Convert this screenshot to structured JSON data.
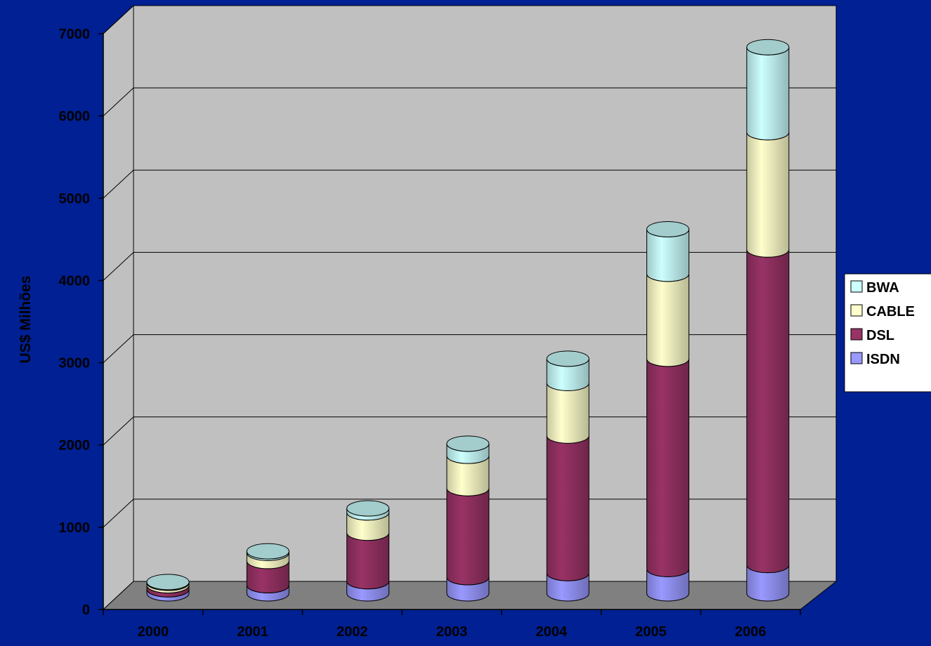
{
  "chart_data": {
    "type": "bar",
    "stacked": true,
    "shape": "cylinder-3d",
    "categories": [
      "2000",
      "2001",
      "2002",
      "2003",
      "2004",
      "2005",
      "2006"
    ],
    "series": [
      {
        "name": "ISDN",
        "color": "#9999FF",
        "values": [
          50,
          100,
          150,
          200,
          250,
          300,
          350
        ]
      },
      {
        "name": "DSL",
        "color": "#993366",
        "values": [
          50,
          300,
          600,
          1100,
          1700,
          2600,
          3900
        ]
      },
      {
        "name": "CABLE",
        "color": "#FFFFCC",
        "values": [
          30,
          100,
          250,
          400,
          650,
          1050,
          1450
        ]
      },
      {
        "name": "BWA",
        "color": "#CCFFFF",
        "values": [
          10,
          20,
          50,
          150,
          300,
          550,
          1050
        ]
      }
    ],
    "ylabel": "US$ Milhões",
    "ylim": [
      0,
      7000
    ],
    "yticks": [
      "0",
      "1000",
      "2000",
      "3000",
      "4000",
      "5000",
      "6000",
      "7000"
    ],
    "grid": true,
    "legend": {
      "position": "right",
      "order": [
        "BWA",
        "CABLE",
        "DSL",
        "ISDN"
      ]
    },
    "colors": {
      "background": "#002093",
      "wall": "#C0C0C0",
      "floor": "#808080"
    }
  }
}
